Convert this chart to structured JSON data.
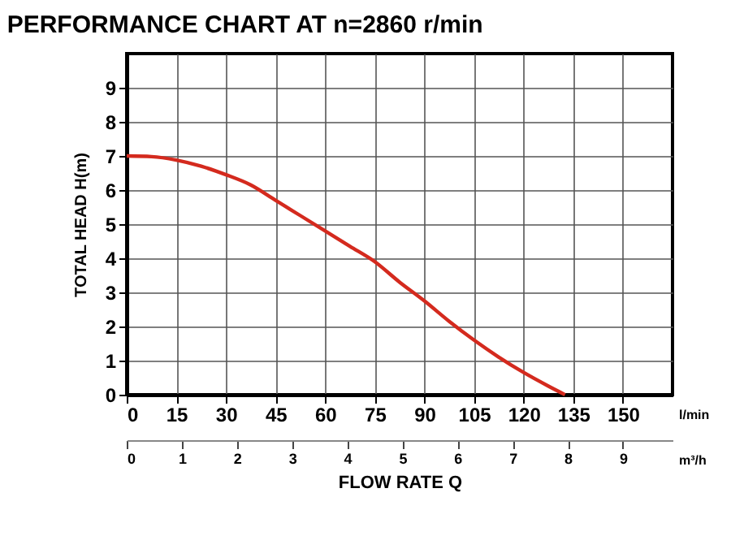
{
  "chart_data": {
    "type": "line",
    "title": "PERFORMANCE CHART AT n=2860 r/min",
    "xlabel": "FLOW RATE Q",
    "ylabel": "TOTAL HEAD H(m)",
    "x": [
      0,
      7.5,
      15,
      22.5,
      30,
      37.5,
      45,
      52.5,
      60,
      67.5,
      75,
      82.5,
      90,
      97.5,
      105,
      112.5,
      120,
      127.5,
      132.5
    ],
    "series": [
      {
        "color": "#d42a1e",
        "values": [
          7.0,
          6.98,
          6.88,
          6.7,
          6.45,
          6.15,
          5.7,
          5.25,
          4.8,
          4.35,
          3.9,
          3.3,
          2.75,
          2.15,
          1.6,
          1.1,
          0.65,
          0.25,
          0
        ]
      }
    ],
    "xlim": [
      0,
      165
    ],
    "xticks": [
      0,
      15,
      30,
      45,
      60,
      75,
      90,
      105,
      120,
      135,
      150
    ],
    "ylim": [
      0,
      10
    ],
    "yticks": [
      0,
      1,
      2,
      3,
      4,
      5,
      6,
      7,
      8,
      9
    ],
    "x2lim": [
      0,
      9.9
    ],
    "x2ticks": [
      0,
      1,
      2,
      3,
      4,
      5,
      6,
      7,
      8,
      9
    ],
    "annotations": [
      "l/min",
      "m³/h"
    ],
    "grid": true,
    "marker": "none",
    "line_style": "solid"
  }
}
